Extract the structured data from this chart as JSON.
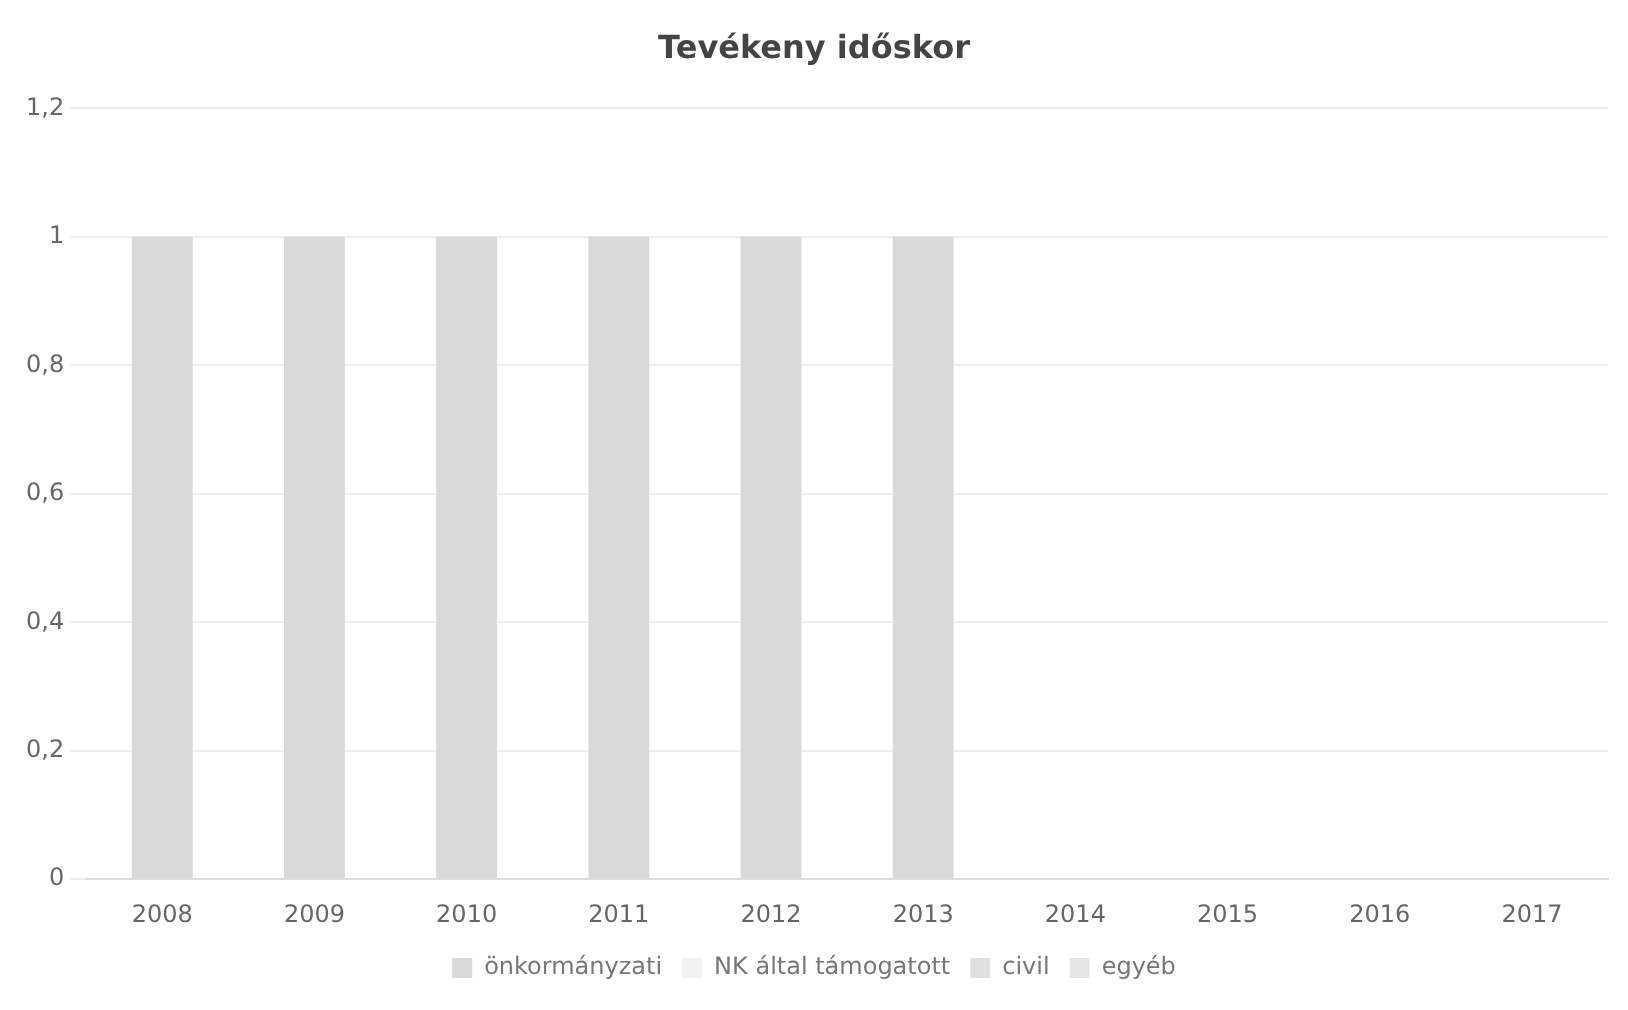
{
  "chart_data": {
    "type": "bar",
    "title": "Tevékeny időskor",
    "stacked": true,
    "categories": [
      "2008",
      "2009",
      "2010",
      "2011",
      "2012",
      "2013",
      "2014",
      "2015",
      "2016",
      "2017"
    ],
    "series": [
      {
        "name": "önkormányzati",
        "color": "#d9d9d9",
        "values": [
          1,
          1,
          1,
          1,
          1,
          1,
          0,
          0,
          0,
          0
        ]
      },
      {
        "name": "NK által támogatott",
        "color": "#f2f2f2",
        "values": [
          0,
          0,
          0,
          0,
          0,
          0,
          0,
          0,
          0,
          0
        ]
      },
      {
        "name": "civil",
        "color": "#e0e0e0",
        "values": [
          0,
          0,
          0,
          0,
          0,
          0,
          0,
          0,
          0,
          0
        ]
      },
      {
        "name": "egyéb",
        "color": "#e6e6e6",
        "values": [
          0,
          0,
          0,
          0,
          0,
          0,
          0,
          0,
          0,
          0
        ]
      }
    ],
    "ylim": [
      0,
      1.2
    ],
    "yticks": [
      {
        "value": 0,
        "label": "0"
      },
      {
        "value": 0.2,
        "label": "0,2"
      },
      {
        "value": 0.4,
        "label": "0,4"
      },
      {
        "value": 0.6,
        "label": "0,6"
      },
      {
        "value": 0.8,
        "label": "0,8"
      },
      {
        "value": 1,
        "label": "1"
      },
      {
        "value": 1.2,
        "label": "1,2"
      }
    ],
    "grid": "y",
    "legend": "bottom"
  }
}
